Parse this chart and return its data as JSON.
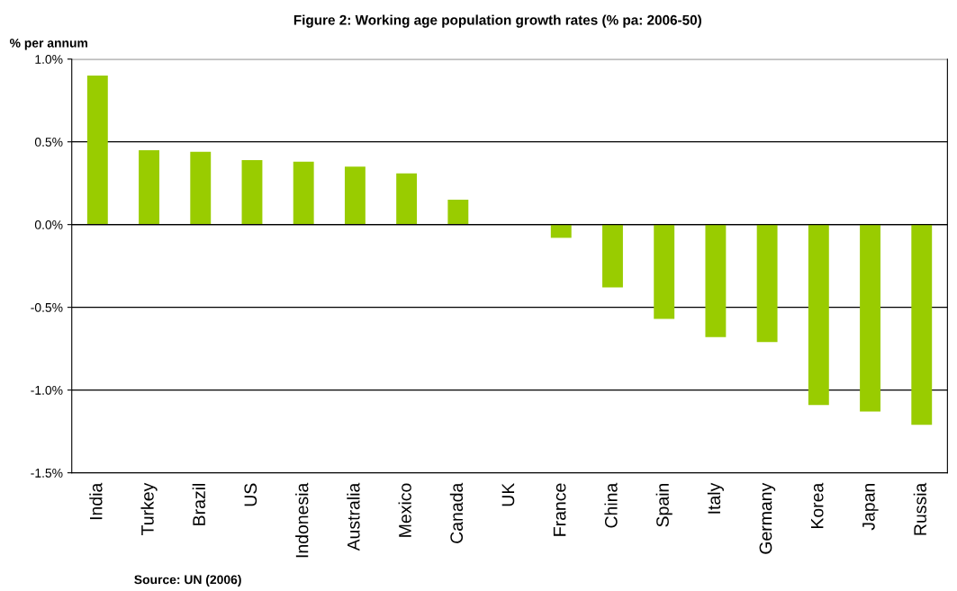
{
  "chart_data": {
    "type": "bar",
    "title": "Figure 2: Working age population growth rates (% pa: 2006-50)",
    "ylabel": "% per annum",
    "categories": [
      "India",
      "Turkey",
      "Brazil",
      "US",
      "Indonesia",
      "Australia",
      "Mexico",
      "Canada",
      "UK",
      "France",
      "China",
      "Spain",
      "Italy",
      "Germany",
      "Korea",
      "Japan",
      "Russia"
    ],
    "values": [
      0.9,
      0.45,
      0.44,
      0.39,
      0.38,
      0.35,
      0.31,
      0.15,
      0.0,
      -0.08,
      -0.38,
      -0.57,
      -0.68,
      -0.71,
      -1.09,
      -1.13,
      -1.21
    ],
    "color": "#99cc00",
    "ylim": [
      -1.5,
      1.0
    ],
    "yticks": [
      {
        "value": -1.5,
        "label": "-1.5%"
      },
      {
        "value": -1.0,
        "label": "-1.0%"
      },
      {
        "value": -0.5,
        "label": "-0.5%"
      },
      {
        "value": 0.0,
        "label": "0.0%"
      },
      {
        "value": 0.5,
        "label": "0.5%"
      },
      {
        "value": 1.0,
        "label": "1.0%"
      }
    ],
    "grid": "y",
    "annotations": [
      "Source: UN (2006)"
    ]
  }
}
